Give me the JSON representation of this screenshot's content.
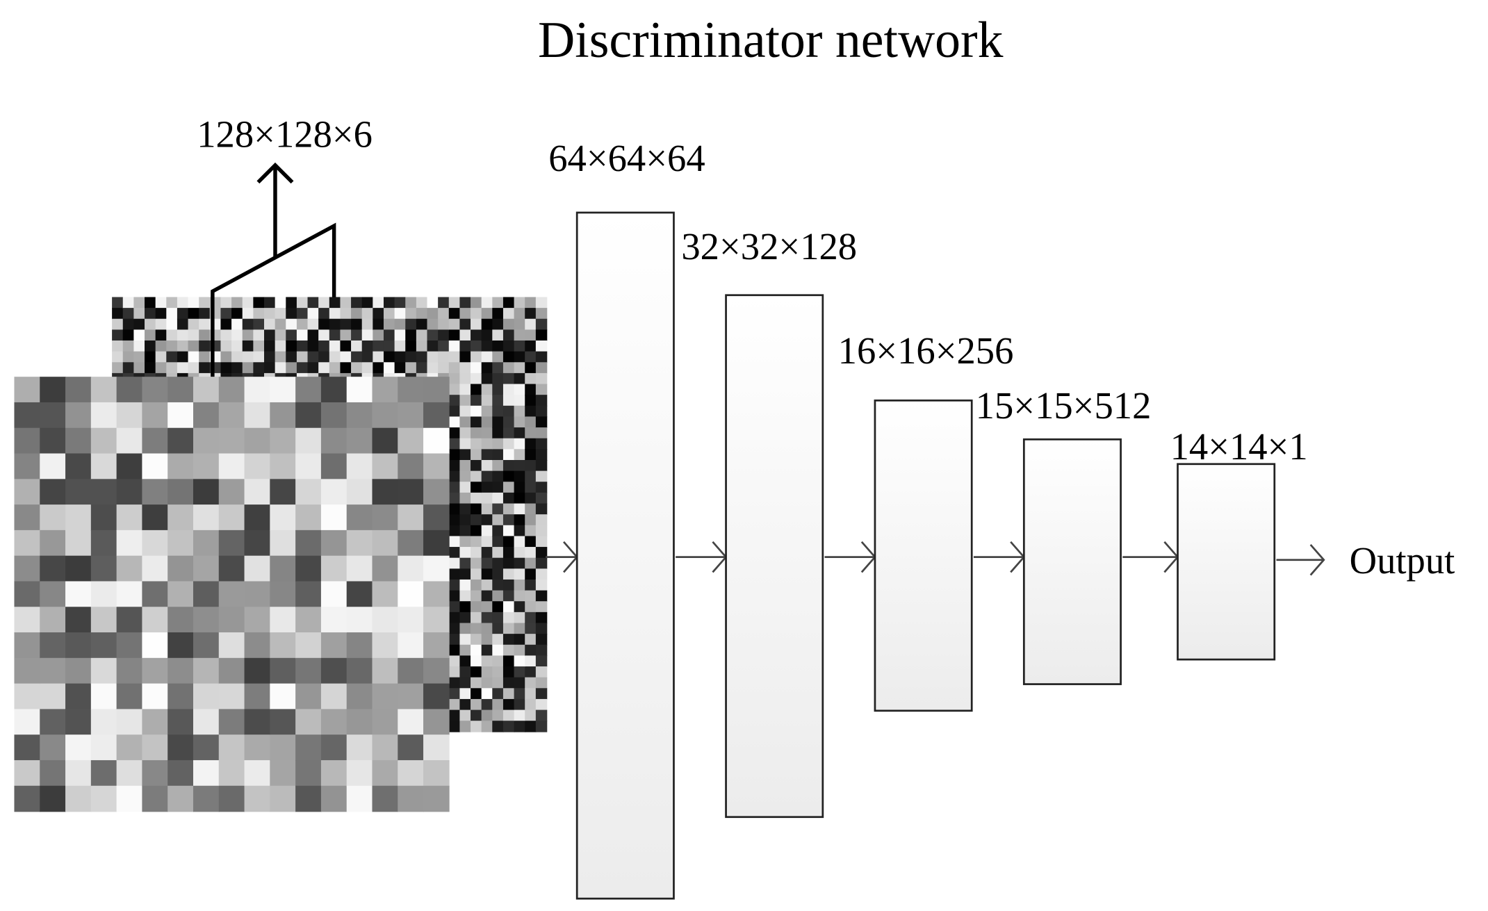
{
  "title": "Discriminator network",
  "input": {
    "label": "128×128×6"
  },
  "layers": [
    {
      "label": "64×64×64"
    },
    {
      "label": "32×32×128"
    },
    {
      "label": "16×16×256"
    },
    {
      "label": "15×15×512"
    },
    {
      "label": "14×14×1"
    }
  ],
  "output": {
    "label": "Output"
  }
}
